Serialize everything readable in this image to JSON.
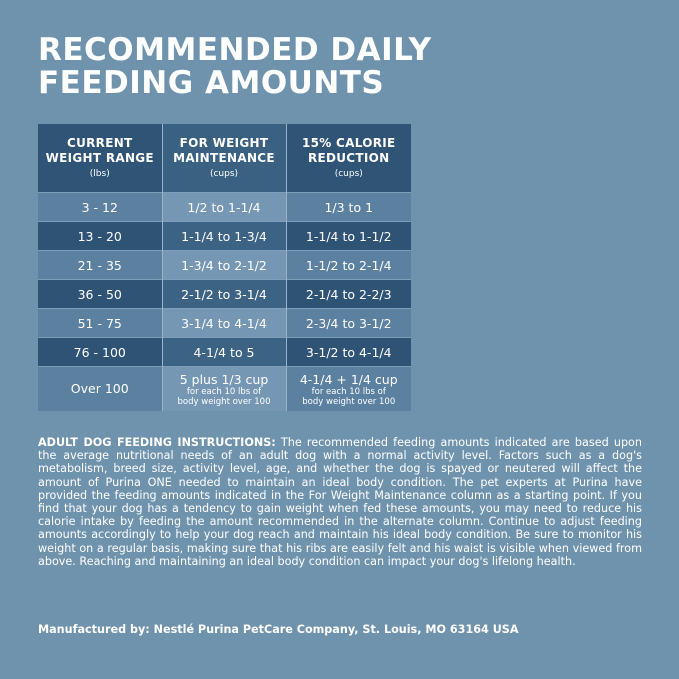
{
  "title": {
    "line1": "RECOMMENDED DAILY",
    "line2": "FEEDING AMOUNTS"
  },
  "table": {
    "headers": [
      {
        "line1": "CURRENT",
        "line2": "WEIGHT RANGE",
        "unit": "(lbs)"
      },
      {
        "line1": "FOR WEIGHT",
        "line2": "MAINTENANCE",
        "unit": "(cups)"
      },
      {
        "line1": "15% CALORIE",
        "line2": "REDUCTION",
        "unit": "(cups)"
      }
    ],
    "rows": [
      [
        "3 - 12",
        "1/2 to 1-1/4",
        "1/3 to 1"
      ],
      [
        "13 - 20",
        "1-1/4 to 1-3/4",
        "1-1/4 to 1-1/2"
      ],
      [
        "21 - 35",
        "1-3/4 to 2-1/2",
        "1-1/2 to 2-1/4"
      ],
      [
        "36 - 50",
        "2-1/2 to 3-1/4",
        "2-1/4 to 2-2/3"
      ],
      [
        "51 - 75",
        "3-1/4 to 4-1/4",
        "2-3/4 to 3-1/2"
      ],
      [
        "76 - 100",
        "4-1/4 to 5",
        "3-1/2 to 4-1/4"
      ]
    ],
    "last_row": {
      "weight": "Over 100",
      "maintenance_main": "5 plus 1/3 cup",
      "maintenance_note1": "for each 10 lbs of",
      "maintenance_note2": "body weight over 100",
      "reduction_main": "4-1/4 + 1/4 cup",
      "reduction_note1": "for each 10 lbs of",
      "reduction_note2": "body weight over 100"
    }
  },
  "instructions": {
    "heading": "ADULT DOG FEEDING INSTRUCTIONS:",
    "body": "The recommended feeding amounts indicated are based upon the average nutritional needs of an adult dog with a normal activity level. Factors such as a dog's metabolism, breed size, activity level, age, and whether the dog is spayed or neutered will affect the amount of Purina ONE needed to maintain an ideal body condition. The pet experts at Purina have provided the feeding amounts indicated in the For Weight Maintenance column as a starting point. If you find that your dog has a tendency to gain weight when fed these amounts, you may need to reduce his calorie intake by feeding the amount recommended in the alternate column. Continue to adjust feeding amounts accordingly to help your dog reach and maintain his ideal body condition. Be sure to monitor his weight on a regular basis, making sure that his ribs are easily felt and his waist is visible when viewed from above. Reaching and maintaining an ideal body condition can impact your dog's lifelong health."
  },
  "footer": "Manufactured by: Nestlé Purina PetCare Company, St. Louis, MO 63164 USA"
}
